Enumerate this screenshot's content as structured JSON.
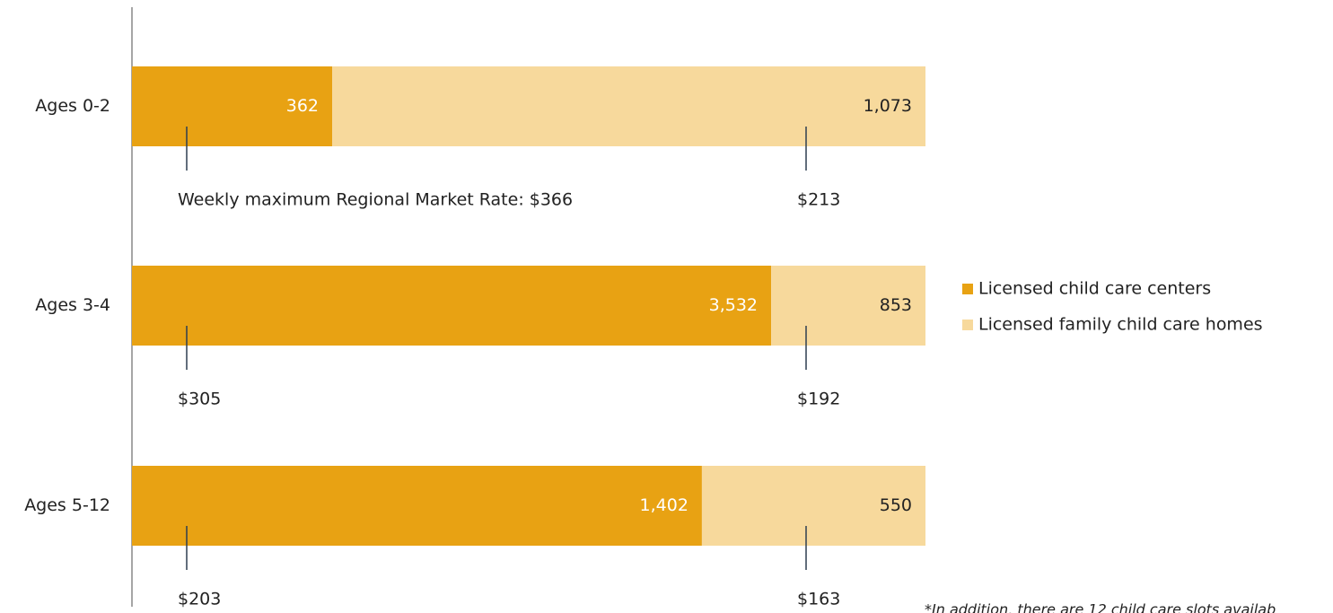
{
  "chart_data": {
    "type": "bar",
    "orientation": "horizontal",
    "stacked": true,
    "normalized": true,
    "categories": [
      "Ages 0-2",
      "Ages 3-4",
      "Ages 5-12"
    ],
    "series": [
      {
        "name": "Licensed child care centers",
        "color": "#e8a213",
        "label_color": "#ffffff",
        "values": [
          362,
          3532,
          1402
        ],
        "value_labels": [
          "362",
          "3,532",
          "1,402"
        ],
        "rate_labels": [
          "Weekly maximum Regional Market Rate: $366",
          "$305",
          "$203"
        ]
      },
      {
        "name": "Licensed family child care homes",
        "color": "#f7d99c",
        "label_color": "#222222",
        "values": [
          1073,
          853,
          550
        ],
        "value_labels": [
          "1,073",
          "853",
          "550"
        ],
        "rate_labels": [
          "$213",
          "$192",
          "$163"
        ]
      }
    ],
    "footnote": "*In addition, there are 12 child care slots availab"
  }
}
